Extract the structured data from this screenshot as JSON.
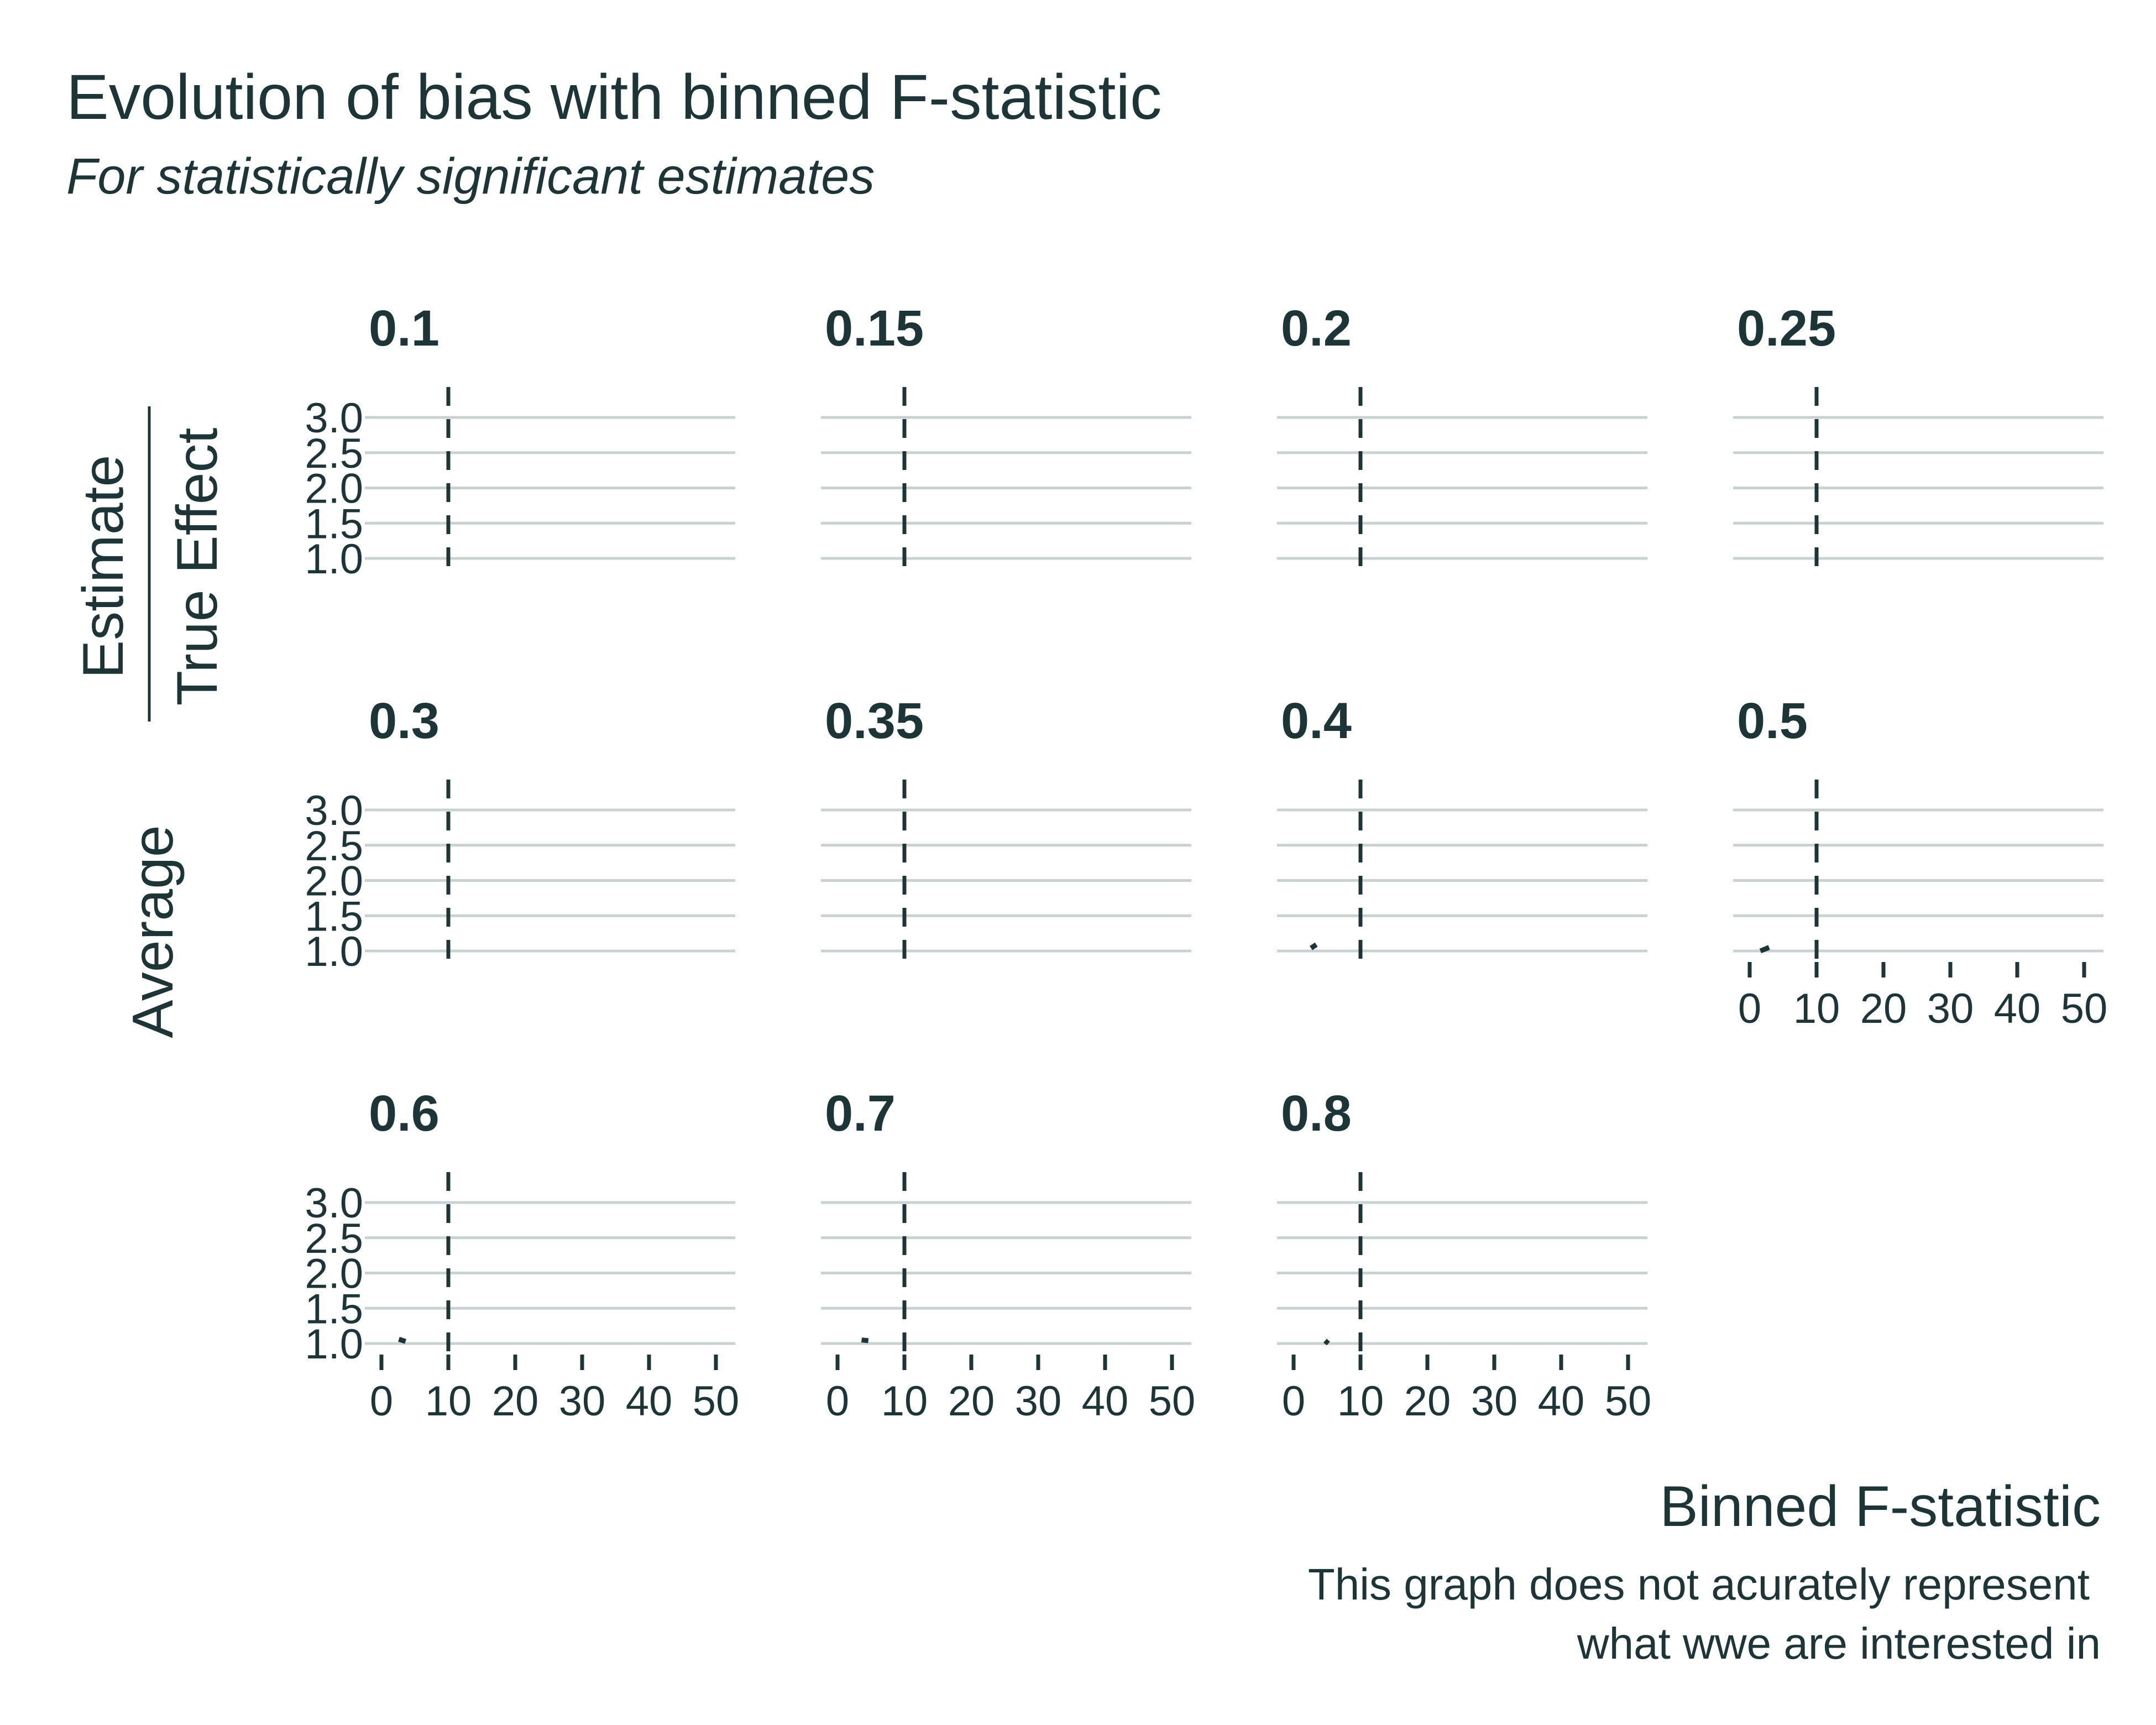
{
  "chart_data": {
    "type": "line",
    "title": "Evolution of bias with binned F-statistic",
    "subtitle": "For statistically significant estimates",
    "xlabel": "Binned F-statistic",
    "ylabel": {
      "prefix": "Average",
      "numerator": "Estimate",
      "denominator": "True Effect"
    },
    "caption": [
      "This graph does not acurately represent",
      "what wwe are interested in"
    ],
    "xlim": [
      0,
      52
    ],
    "ylim": [
      1.0,
      3.0
    ],
    "x_ticks": [
      0,
      10,
      20,
      30,
      40,
      50
    ],
    "y_ticks": [
      1.0,
      1.5,
      2.0,
      2.5,
      3.0
    ],
    "y_tick_labels": [
      "1.0",
      "1.5",
      "2.0",
      "2.5",
      "3.0"
    ],
    "reference_line_x": 10,
    "grid": true,
    "legend": "none",
    "facets": [
      {
        "label": "0.1",
        "points": []
      },
      {
        "label": "0.15",
        "points": []
      },
      {
        "label": "0.2",
        "points": []
      },
      {
        "label": "0.25",
        "points": []
      },
      {
        "label": "0.3",
        "points": []
      },
      {
        "label": "0.35",
        "points": []
      },
      {
        "label": "0.4",
        "points": [
          [
            2.6,
            1.04
          ],
          [
            3.4,
            1.09
          ]
        ]
      },
      {
        "label": "0.5",
        "points": [
          [
            1.6,
            1.0
          ],
          [
            2.9,
            1.05
          ]
        ]
      },
      {
        "label": "0.6",
        "points": [
          [
            2.6,
            1.06
          ],
          [
            3.6,
            1.03
          ]
        ]
      },
      {
        "label": "0.7",
        "points": [
          [
            3.6,
            1.05
          ],
          [
            4.6,
            1.04
          ]
        ]
      },
      {
        "label": "0.8",
        "points": [
          [
            4.7,
            1.04
          ],
          [
            5.2,
            1.0
          ]
        ]
      }
    ]
  }
}
